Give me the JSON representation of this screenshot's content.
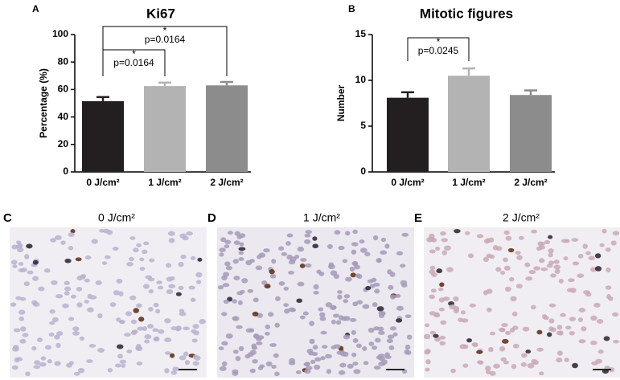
{
  "chart_data": [
    {
      "type": "bar",
      "panel_label": "A",
      "title": "Ki67",
      "ylabel": "Percentage (%)",
      "categories": [
        "0 J/cm²",
        "1 J/cm²",
        "2 J/cm²"
      ],
      "values": [
        51.5,
        62.5,
        63
      ],
      "errors": [
        3,
        2.5,
        2.5
      ],
      "colors": [
        "#231f20",
        "#b3b3b3",
        "#8c8c8c"
      ],
      "ylim": [
        0,
        100
      ],
      "yticks": [
        0,
        20,
        40,
        60,
        80,
        100
      ],
      "annotations": [
        {
          "star": "*",
          "text": "p=0.0164"
        },
        {
          "star": "*",
          "text": "p=0.0164"
        }
      ]
    },
    {
      "type": "bar",
      "panel_label": "B",
      "title": "Mitotic figures",
      "ylabel": "Number",
      "categories": [
        "0 J/cm²",
        "1 J/cm²",
        "2 J/cm²"
      ],
      "values": [
        8.1,
        10.5,
        8.4
      ],
      "errors": [
        0.6,
        0.8,
        0.5
      ],
      "colors": [
        "#231f20",
        "#b3b3b3",
        "#8c8c8c"
      ],
      "ylim": [
        0,
        15
      ],
      "yticks": [
        0,
        5,
        10,
        15
      ],
      "annotations": [
        {
          "star": "*",
          "text": "p=0.0245"
        }
      ]
    }
  ],
  "images": [
    {
      "label": "C",
      "title": "0 J/cm²"
    },
    {
      "label": "D",
      "title": "1 J/cm²"
    },
    {
      "label": "E",
      "title": "2 J/cm²"
    }
  ]
}
